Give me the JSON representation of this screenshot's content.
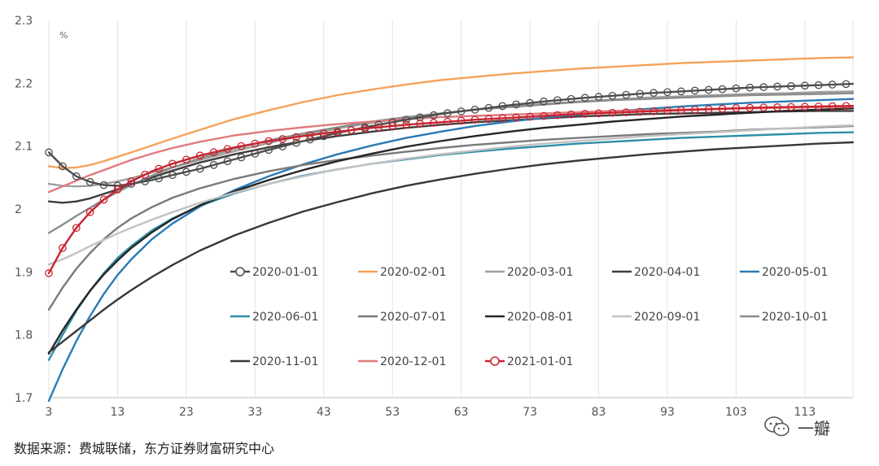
{
  "chart_data": {
    "type": "line",
    "title": "",
    "unit_label": "%",
    "xlabel": "",
    "ylabel": "",
    "xlim": [
      3,
      120
    ],
    "ylim": [
      1.7,
      2.3
    ],
    "x_ticks": [
      3,
      13,
      23,
      33,
      43,
      53,
      63,
      73,
      83,
      93,
      103,
      113
    ],
    "y_ticks": [
      1.7,
      1.8,
      1.9,
      2.0,
      2.1,
      2.2,
      2.3
    ],
    "y_tick_labels": [
      "1.7",
      "1.8",
      "1.9",
      "2",
      "2.1",
      "2.2",
      "2.3"
    ],
    "grid": "vertical",
    "legend": "inside, lower-right, 3 rows",
    "x": [
      3,
      5,
      7,
      9,
      11,
      13,
      15,
      18,
      21,
      25,
      30,
      35,
      40,
      45,
      50,
      55,
      60,
      65,
      70,
      75,
      80,
      85,
      90,
      95,
      100,
      105,
      110,
      115,
      120
    ],
    "series": [
      {
        "name": "2020-01-01",
        "color": "#4d4d4d",
        "marker": "circle",
        "values": [
          2.09,
          2.068,
          2.052,
          2.043,
          2.038,
          2.037,
          2.04,
          2.046,
          2.054,
          2.064,
          2.079,
          2.094,
          2.108,
          2.121,
          2.132,
          2.142,
          2.151,
          2.158,
          2.165,
          2.171,
          2.176,
          2.18,
          2.184,
          2.187,
          2.19,
          2.193,
          2.195,
          2.197,
          2.199
        ]
      },
      {
        "name": "2020-02-01",
        "color": "#f5a25a",
        "marker": "none",
        "values": [
          2.068,
          2.065,
          2.066,
          2.07,
          2.076,
          2.083,
          2.09,
          2.101,
          2.112,
          2.126,
          2.143,
          2.157,
          2.17,
          2.181,
          2.19,
          2.198,
          2.205,
          2.21,
          2.215,
          2.219,
          2.223,
          2.226,
          2.229,
          2.232,
          2.234,
          2.236,
          2.238,
          2.24,
          2.241
        ]
      },
      {
        "name": "2020-03-01",
        "color": "#9e9e9e",
        "marker": "none",
        "values": [
          2.04,
          2.037,
          2.036,
          2.037,
          2.04,
          2.044,
          2.049,
          2.058,
          2.066,
          2.078,
          2.092,
          2.105,
          2.117,
          2.128,
          2.137,
          2.145,
          2.152,
          2.158,
          2.163,
          2.167,
          2.171,
          2.174,
          2.177,
          2.179,
          2.181,
          2.183,
          2.184,
          2.186,
          2.187
        ]
      },
      {
        "name": "2020-04-01",
        "color": "#3d3d3d",
        "marker": "none",
        "values": [
          2.012,
          2.01,
          2.012,
          2.017,
          2.024,
          2.031,
          2.039,
          2.05,
          2.061,
          2.074,
          2.087,
          2.098,
          2.108,
          2.116,
          2.123,
          2.129,
          2.134,
          2.138,
          2.141,
          2.144,
          2.147,
          2.149,
          2.151,
          2.152,
          2.153,
          2.154,
          2.155,
          2.156,
          2.156
        ]
      },
      {
        "name": "2020-05-01",
        "color": "#2a7ab5",
        "marker": "none",
        "values": [
          1.695,
          1.745,
          1.79,
          1.83,
          1.865,
          1.895,
          1.92,
          1.952,
          1.977,
          2.004,
          2.03,
          2.052,
          2.071,
          2.087,
          2.101,
          2.113,
          2.123,
          2.132,
          2.139,
          2.145,
          2.15,
          2.155,
          2.159,
          2.163,
          2.166,
          2.169,
          2.171,
          2.173,
          2.175
        ]
      },
      {
        "name": "2020-06-01",
        "color": "#2e8fa8",
        "marker": "none",
        "values": [
          1.76,
          1.8,
          1.838,
          1.87,
          1.898,
          1.922,
          1.941,
          1.966,
          1.985,
          2.005,
          2.025,
          2.04,
          2.053,
          2.063,
          2.072,
          2.079,
          2.086,
          2.091,
          2.096,
          2.1,
          2.104,
          2.107,
          2.11,
          2.113,
          2.115,
          2.117,
          2.119,
          2.121,
          2.122
        ]
      },
      {
        "name": "2020-07-01",
        "color": "#7a7a7a",
        "marker": "none",
        "values": [
          1.84,
          1.875,
          1.905,
          1.93,
          1.952,
          1.97,
          1.985,
          2.003,
          2.018,
          2.033,
          2.048,
          2.06,
          2.07,
          2.078,
          2.085,
          2.091,
          2.097,
          2.102,
          2.106,
          2.11,
          2.113,
          2.116,
          2.119,
          2.121,
          2.123,
          2.126,
          2.128,
          2.13,
          2.132
        ]
      },
      {
        "name": "2020-08-01",
        "color": "#262626",
        "marker": "none",
        "values": [
          1.77,
          1.807,
          1.84,
          1.87,
          1.896,
          1.918,
          1.938,
          1.963,
          1.984,
          2.006,
          2.028,
          2.046,
          2.062,
          2.076,
          2.088,
          2.099,
          2.108,
          2.116,
          2.123,
          2.129,
          2.134,
          2.139,
          2.143,
          2.147,
          2.15,
          2.153,
          2.156,
          2.158,
          2.16
        ]
      },
      {
        "name": "2020-09-01",
        "color": "#c2c2c2",
        "marker": "none",
        "values": [
          1.912,
          1.92,
          1.93,
          1.941,
          1.951,
          1.961,
          1.97,
          1.983,
          1.995,
          2.01,
          2.026,
          2.04,
          2.052,
          2.063,
          2.072,
          2.08,
          2.087,
          2.093,
          2.099,
          2.104,
          2.108,
          2.112,
          2.116,
          2.119,
          2.122,
          2.125,
          2.128,
          2.131,
          2.133
        ]
      },
      {
        "name": "2020-10-01",
        "color": "#8c8c8c",
        "marker": "none",
        "values": [
          1.962,
          1.975,
          1.989,
          2.002,
          2.015,
          2.027,
          2.038,
          2.053,
          2.066,
          2.081,
          2.096,
          2.109,
          2.12,
          2.13,
          2.139,
          2.146,
          2.152,
          2.158,
          2.162,
          2.166,
          2.17,
          2.173,
          2.175,
          2.177,
          2.179,
          2.181,
          2.182,
          2.183,
          2.184
        ]
      },
      {
        "name": "2020-11-01",
        "color": "#383838",
        "marker": "none",
        "values": [
          1.772,
          1.789,
          1.806,
          1.823,
          1.84,
          1.856,
          1.871,
          1.892,
          1.911,
          1.934,
          1.958,
          1.978,
          1.996,
          2.011,
          2.025,
          2.037,
          2.047,
          2.056,
          2.064,
          2.071,
          2.077,
          2.082,
          2.087,
          2.091,
          2.095,
          2.098,
          2.101,
          2.104,
          2.106
        ]
      },
      {
        "name": "2020-12-01",
        "color": "#e07a7f",
        "marker": "none",
        "values": [
          2.027,
          2.036,
          2.045,
          2.054,
          2.062,
          2.07,
          2.078,
          2.088,
          2.097,
          2.107,
          2.117,
          2.124,
          2.13,
          2.135,
          2.139,
          2.143,
          2.146,
          2.148,
          2.15,
          2.152,
          2.154,
          2.156,
          2.157,
          2.158,
          2.159,
          2.16,
          2.161,
          2.162,
          2.163
        ]
      },
      {
        "name": "2021-01-01",
        "color": "#c8242f",
        "marker": "circle",
        "values": [
          1.898,
          1.938,
          1.97,
          1.995,
          2.015,
          2.031,
          2.044,
          2.06,
          2.072,
          2.085,
          2.098,
          2.108,
          2.116,
          2.123,
          2.129,
          2.134,
          2.138,
          2.142,
          2.145,
          2.148,
          2.151,
          2.153,
          2.155,
          2.157,
          2.159,
          2.161,
          2.162,
          2.163,
          2.164
        ]
      }
    ]
  },
  "footer": {
    "source": "数据来源：费城联储，东方证券财富研究中心",
    "watermark": "一瓣"
  }
}
